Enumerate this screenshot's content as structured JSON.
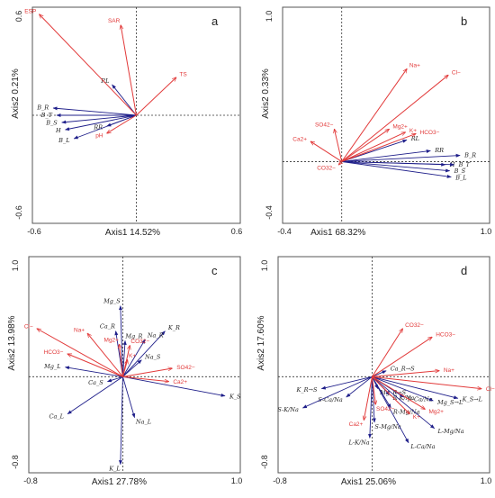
{
  "chart_data": [
    {
      "type": "biplot",
      "panel_label": "a",
      "xlabel": "Axis1  14.52%",
      "ylabel": "Axis2  0.21%",
      "xlim": [
        -0.6,
        0.6
      ],
      "ylim": [
        -0.6,
        0.6
      ],
      "x_ticks": [
        "-0.6",
        "0.6"
      ],
      "y_ticks": [
        "0.6",
        "-0.6"
      ],
      "vectors": [
        {
          "name": "ESP",
          "x": -0.56,
          "y": 0.56,
          "color": "#e23a3a"
        },
        {
          "name": "SAR",
          "x": -0.09,
          "y": 0.5,
          "color": "#e23a3a"
        },
        {
          "name": "TS",
          "x": 0.23,
          "y": 0.21,
          "color": "#e23a3a"
        },
        {
          "name": "pH",
          "x": -0.17,
          "y": -0.1,
          "color": "#e23a3a"
        },
        {
          "name": "RL",
          "x": -0.14,
          "y": 0.17,
          "color": "#1f1f8a"
        },
        {
          "name": "B_R",
          "x": -0.48,
          "y": 0.04,
          "color": "#1f1f8a"
        },
        {
          "name": "B_T",
          "x": -0.46,
          "y": 0.0,
          "color": "#1f1f8a"
        },
        {
          "name": "B_S",
          "x": -0.43,
          "y": -0.04,
          "color": "#1f1f8a"
        },
        {
          "name": "H",
          "x": -0.41,
          "y": -0.08,
          "color": "#1f1f8a"
        },
        {
          "name": "RR",
          "x": -0.17,
          "y": -0.06,
          "color": "#1f1f8a"
        },
        {
          "name": "B_L",
          "x": -0.36,
          "y": -0.13,
          "color": "#1f1f8a"
        }
      ]
    },
    {
      "type": "biplot",
      "panel_label": "b",
      "xlabel": "Axis1  68.32%",
      "ylabel": "Axis2  0.33%",
      "xlim": [
        -0.4,
        1.0
      ],
      "ylim": [
        -0.4,
        1.0
      ],
      "x_ticks": [
        "-0.4",
        "1.0"
      ],
      "y_ticks": [
        "1.0",
        "-0.4"
      ],
      "vectors": [
        {
          "name": "Na+",
          "x": 0.44,
          "y": 0.6,
          "color": "#e23a3a"
        },
        {
          "name": "Cl−",
          "x": 0.72,
          "y": 0.56,
          "color": "#e23a3a"
        },
        {
          "name": "SO42−",
          "x": -0.05,
          "y": 0.21,
          "color": "#e23a3a"
        },
        {
          "name": "Ca2+",
          "x": -0.21,
          "y": 0.13,
          "color": "#e23a3a"
        },
        {
          "name": "Mg2+",
          "x": 0.32,
          "y": 0.21,
          "color": "#e23a3a"
        },
        {
          "name": "K+",
          "x": 0.43,
          "y": 0.19,
          "color": "#e23a3a"
        },
        {
          "name": "HCO3−",
          "x": 0.5,
          "y": 0.18,
          "color": "#e23a3a"
        },
        {
          "name": "CO32−",
          "x": -0.02,
          "y": -0.02,
          "color": "#e23a3a"
        },
        {
          "name": "RL",
          "x": 0.44,
          "y": 0.14,
          "color": "#1f1f8a"
        },
        {
          "name": "RR",
          "x": 0.6,
          "y": 0.07,
          "color": "#1f1f8a"
        },
        {
          "name": "B_R",
          "x": 0.8,
          "y": 0.04,
          "color": "#1f1f8a"
        },
        {
          "name": "H",
          "x": 0.7,
          "y": -0.02,
          "color": "#1f1f8a"
        },
        {
          "name": "B_T",
          "x": 0.76,
          "y": -0.02,
          "color": "#1f1f8a"
        },
        {
          "name": "B_S",
          "x": 0.73,
          "y": -0.06,
          "color": "#1f1f8a"
        },
        {
          "name": "B_L",
          "x": 0.74,
          "y": -0.1,
          "color": "#1f1f8a"
        }
      ]
    },
    {
      "type": "biplot",
      "panel_label": "c",
      "xlabel": "Axis1  27.78%",
      "ylabel": "Axis2  13.98%",
      "xlim": [
        -0.8,
        1.0
      ],
      "ylim": [
        -0.8,
        1.0
      ],
      "x_ticks": [
        "-0.8",
        "1.0"
      ],
      "y_ticks": [
        "1.0",
        "-0.8"
      ],
      "vectors": [
        {
          "name": "Cl−",
          "x": -0.73,
          "y": 0.4,
          "color": "#e23a3a"
        },
        {
          "name": "Na+",
          "x": -0.3,
          "y": 0.36,
          "color": "#e23a3a"
        },
        {
          "name": "HCO3−",
          "x": -0.47,
          "y": 0.19,
          "color": "#e23a3a"
        },
        {
          "name": "Mg2+",
          "x": -0.03,
          "y": 0.27,
          "color": "#e23a3a"
        },
        {
          "name": "CO32−",
          "x": 0.06,
          "y": 0.26,
          "color": "#e23a3a"
        },
        {
          "name": "K+",
          "x": 0.04,
          "y": 0.14,
          "color": "#e23a3a"
        },
        {
          "name": "SO42−",
          "x": 0.42,
          "y": 0.07,
          "color": "#e23a3a"
        },
        {
          "name": "Ca2+",
          "x": 0.39,
          "y": -0.04,
          "color": "#e23a3a"
        },
        {
          "name": "Mg_S",
          "x": -0.02,
          "y": 0.59,
          "color": "#1f1f8a"
        },
        {
          "name": "Ca_R",
          "x": -0.06,
          "y": 0.38,
          "color": "#1f1f8a"
        },
        {
          "name": "K_R",
          "x": 0.36,
          "y": 0.38,
          "color": "#1f1f8a"
        },
        {
          "name": "Na_R",
          "x": 0.19,
          "y": 0.31,
          "color": "#1f1f8a"
        },
        {
          "name": "Mg_R",
          "x": 0.02,
          "y": 0.3,
          "color": "#1f1f8a"
        },
        {
          "name": "Na_S",
          "x": 0.16,
          "y": 0.14,
          "color": "#1f1f8a"
        },
        {
          "name": "Mg_L",
          "x": -0.49,
          "y": 0.08,
          "color": "#1f1f8a"
        },
        {
          "name": "Ca_S",
          "x": -0.13,
          "y": -0.04,
          "color": "#1f1f8a"
        },
        {
          "name": "Ca_L",
          "x": -0.47,
          "y": -0.31,
          "color": "#1f1f8a"
        },
        {
          "name": "Na_L",
          "x": 0.1,
          "y": -0.34,
          "color": "#1f1f8a"
        },
        {
          "name": "K_S",
          "x": 0.87,
          "y": -0.16,
          "color": "#1f1f8a"
        },
        {
          "name": "K_L",
          "x": -0.02,
          "y": -0.73,
          "color": "#1f1f8a"
        }
      ]
    },
    {
      "type": "biplot",
      "panel_label": "d",
      "xlabel": "Axis1  25.06%",
      "ylabel": "Axis2  17.60%",
      "xlim": [
        -0.8,
        1.0
      ],
      "ylim": [
        -0.8,
        1.0
      ],
      "x_ticks": [
        "-0.8",
        "1.0"
      ],
      "y_ticks": [
        "1.0",
        "-0.8"
      ],
      "vectors": [
        {
          "name": "CO32−",
          "x": 0.26,
          "y": 0.4,
          "color": "#e23a3a"
        },
        {
          "name": "HCO3−",
          "x": 0.51,
          "y": 0.33,
          "color": "#e23a3a"
        },
        {
          "name": "Na+",
          "x": 0.57,
          "y": 0.05,
          "color": "#e23a3a"
        },
        {
          "name": "Cl−",
          "x": 0.93,
          "y": -0.1,
          "color": "#e23a3a"
        },
        {
          "name": "SO42−",
          "x": 0.03,
          "y": -0.23,
          "color": "#e23a3a"
        },
        {
          "name": "Ca2+",
          "x": -0.07,
          "y": -0.36,
          "color": "#e23a3a"
        },
        {
          "name": "Mg2+",
          "x": 0.45,
          "y": -0.27,
          "color": "#e23a3a"
        },
        {
          "name": "K+",
          "x": 0.32,
          "y": -0.31,
          "color": "#e23a3a"
        },
        {
          "name": "Ca_R→S",
          "x": 0.12,
          "y": 0.05,
          "color": "#1f1f8a"
        },
        {
          "name": "K_R→S",
          "x": -0.43,
          "y": -0.1,
          "color": "#1f1f8a"
        },
        {
          "name": "Mg_R→S",
          "x": 0.05,
          "y": -0.1,
          "color": "#1f1f8a"
        },
        {
          "name": "S-Ca/Na",
          "x": -0.22,
          "y": -0.17,
          "color": "#1f1f8a"
        },
        {
          "name": "S-K/Na",
          "x": -0.59,
          "y": -0.26,
          "color": "#1f1f8a"
        },
        {
          "name": "R-K/Na",
          "x": 0.15,
          "y": -0.15,
          "color": "#1f1f8a"
        },
        {
          "name": "R-Ca/Na",
          "x": 0.27,
          "y": -0.17,
          "color": "#1f1f8a"
        },
        {
          "name": "Mg_S→L",
          "x": 0.52,
          "y": -0.2,
          "color": "#1f1f8a"
        },
        {
          "name": "K_S→L",
          "x": 0.73,
          "y": -0.18,
          "color": "#1f1f8a"
        },
        {
          "name": "R-Mg/Na",
          "x": 0.16,
          "y": -0.26,
          "color": "#1f1f8a"
        },
        {
          "name": "S-Mg/Na",
          "x": 0.02,
          "y": -0.38,
          "color": "#1f1f8a"
        },
        {
          "name": "L-K/Na",
          "x": -0.02,
          "y": -0.51,
          "color": "#1f1f8a"
        },
        {
          "name": "L-Mg/Na",
          "x": 0.53,
          "y": -0.43,
          "color": "#1f1f8a"
        },
        {
          "name": "L-Ca/Na",
          "x": 0.31,
          "y": -0.55,
          "color": "#1f1f8a"
        }
      ]
    }
  ]
}
